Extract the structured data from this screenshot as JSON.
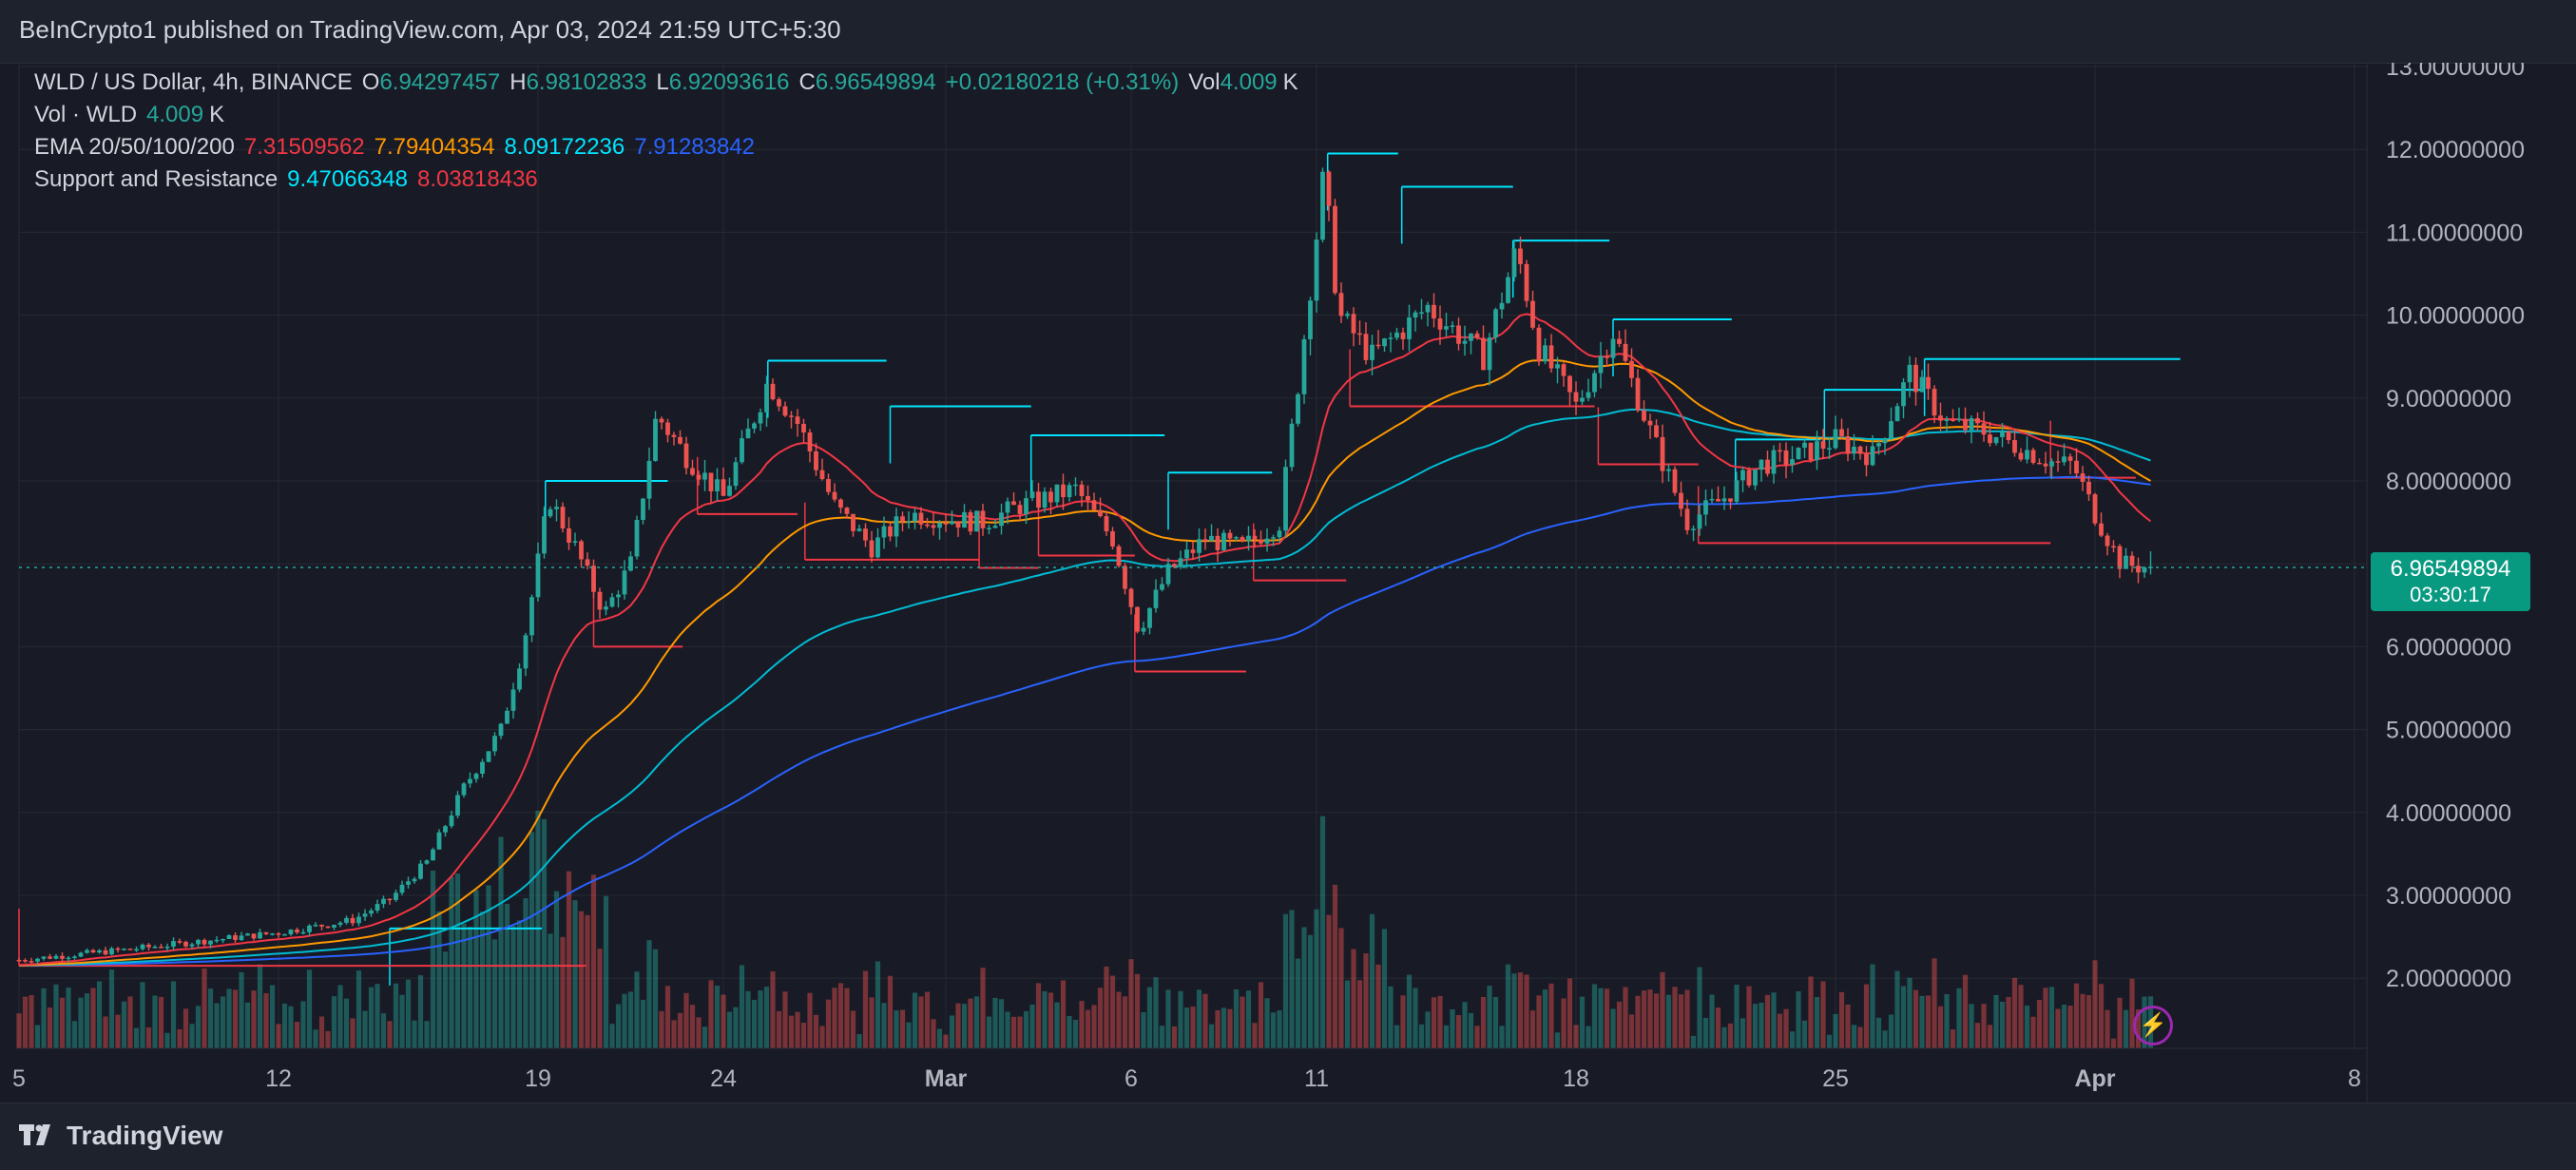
{
  "header": {
    "publisher_line": "BeInCrypto1 published on TradingView.com, Apr 03, 2024 21:59 UTC+5:30"
  },
  "legend": {
    "symbol": "WLD / US Dollar, 4h, BINANCE",
    "o_label": "O",
    "o": "6.94297457",
    "h_label": "H",
    "h": "6.98102833",
    "l_label": "L",
    "l": "6.92093616",
    "c_label": "C",
    "c": "6.96549894",
    "change": "+0.02180218 (+0.31%)",
    "vol_label": "Vol",
    "vol": "4.009",
    "vol_unit": "K",
    "vol_series_label": "Vol · WLD",
    "ema_label": "EMA 20/50/100/200",
    "ema20": "7.31509562",
    "ema50": "7.79404354",
    "ema100": "8.09172236",
    "ema200": "7.91283842",
    "sr_label": "Support and Resistance",
    "resistance": "9.47066348",
    "support": "8.03818436"
  },
  "price_tag": {
    "price": "6.96549894",
    "countdown": "03:30:17"
  },
  "footer": {
    "brand": "TradingView"
  },
  "colors": {
    "up": "#26a69a",
    "down": "#ef5350",
    "ema20": "#f23645",
    "ema50": "#ff9800",
    "ema100": "#00bcd4",
    "ema200": "#2962ff",
    "resistance": "#00e5ff",
    "support": "#f23645",
    "grid": "#262a35"
  },
  "icons": [
    "lightning-icon",
    "tradingview-logo-icon"
  ],
  "chart_data": {
    "type": "candlestick",
    "symbol": "WLD / US Dollar",
    "interval": "4h",
    "exchange": "BINANCE",
    "y_axis_ticks": [
      "13.00000000",
      "12.00000000",
      "11.00000000",
      "10.00000000",
      "9.00000000",
      "8.00000000",
      "7.00000000",
      "6.00000000",
      "5.00000000",
      "4.00000000",
      "3.00000000",
      "2.00000000"
    ],
    "y_axis_values": [
      13,
      12,
      11,
      10,
      9,
      8,
      7,
      6,
      5,
      4,
      3,
      2
    ],
    "ylim": [
      1.28,
      13.0
    ],
    "x_axis_labels": [
      "5",
      "12",
      "19",
      "24",
      "Mar",
      "6",
      "11",
      "18",
      "25",
      "Apr",
      "8"
    ],
    "x_axis_label_days": [
      0,
      7,
      14,
      19,
      25,
      30,
      35,
      42,
      49,
      56,
      63
    ],
    "x_start": "2024-02-05",
    "last_price": 6.96549894,
    "price_anchors": [
      {
        "day": 0,
        "close": 2.22
      },
      {
        "day": 3,
        "close": 2.35
      },
      {
        "day": 5,
        "close": 2.45
      },
      {
        "day": 7,
        "close": 2.55
      },
      {
        "day": 9,
        "close": 2.7
      },
      {
        "day": 10,
        "close": 2.95
      },
      {
        "day": 11,
        "close": 3.4
      },
      {
        "day": 12,
        "close": 4.3
      },
      {
        "day": 13,
        "close": 5.0
      },
      {
        "day": 13.6,
        "close": 6.0
      },
      {
        "day": 14.3,
        "close": 7.8
      },
      {
        "day": 15,
        "close": 7.2
      },
      {
        "day": 15.8,
        "close": 6.4
      },
      {
        "day": 16.5,
        "close": 7.0
      },
      {
        "day": 17.2,
        "close": 8.8
      },
      {
        "day": 18,
        "close": 8.3
      },
      {
        "day": 19,
        "close": 7.8
      },
      {
        "day": 20.2,
        "close": 9.2
      },
      {
        "day": 21,
        "close": 8.7
      },
      {
        "day": 22,
        "close": 7.7
      },
      {
        "day": 23,
        "close": 7.2
      },
      {
        "day": 24,
        "close": 7.6
      },
      {
        "day": 26,
        "close": 7.5
      },
      {
        "day": 27,
        "close": 7.7
      },
      {
        "day": 28.5,
        "close": 7.9
      },
      {
        "day": 29.5,
        "close": 7.3
      },
      {
        "day": 30.2,
        "close": 6.2
      },
      {
        "day": 31,
        "close": 6.9
      },
      {
        "day": 32,
        "close": 7.3
      },
      {
        "day": 33,
        "close": 7.2
      },
      {
        "day": 34,
        "close": 7.5
      },
      {
        "day": 34.6,
        "close": 9.5
      },
      {
        "day": 35.2,
        "close": 11.7
      },
      {
        "day": 35.6,
        "close": 10.0
      },
      {
        "day": 36.5,
        "close": 9.5
      },
      {
        "day": 38,
        "close": 10.1
      },
      {
        "day": 39.5,
        "close": 9.5
      },
      {
        "day": 40.4,
        "close": 10.8
      },
      {
        "day": 41,
        "close": 9.6
      },
      {
        "day": 42,
        "close": 8.9
      },
      {
        "day": 43,
        "close": 9.8
      },
      {
        "day": 44,
        "close": 8.6
      },
      {
        "day": 45,
        "close": 7.5
      },
      {
        "day": 46,
        "close": 7.8
      },
      {
        "day": 47,
        "close": 8.2
      },
      {
        "day": 48,
        "close": 8.3
      },
      {
        "day": 49,
        "close": 8.5
      },
      {
        "day": 50,
        "close": 8.3
      },
      {
        "day": 51,
        "close": 9.3
      },
      {
        "day": 52,
        "close": 8.7
      },
      {
        "day": 53,
        "close": 8.6
      },
      {
        "day": 54,
        "close": 8.4
      },
      {
        "day": 55,
        "close": 8.2
      },
      {
        "day": 55.4,
        "close": 8.2
      },
      {
        "day": 56,
        "close": 7.6
      },
      {
        "day": 56.7,
        "close": 7.0
      },
      {
        "day": 57.5,
        "close": 6.95
      }
    ],
    "ema_values_last": {
      "ema20": 7.31509562,
      "ema50": 7.79404354,
      "ema100": 8.09172236,
      "ema200": 7.91283842
    },
    "resistance_levels": [
      {
        "price": 2.6,
        "from_day": 10,
        "to_day": 14.1
      },
      {
        "price": 8.0,
        "from_day": 14.2,
        "to_day": 17.5
      },
      {
        "price": 9.45,
        "from_day": 20.2,
        "to_day": 23.4
      },
      {
        "price": 8.9,
        "from_day": 23.5,
        "to_day": 27.3
      },
      {
        "price": 8.55,
        "from_day": 27.3,
        "to_day": 30.9
      },
      {
        "price": 8.1,
        "from_day": 31.0,
        "to_day": 33.8
      },
      {
        "price": 11.95,
        "from_day": 35.3,
        "to_day": 37.2
      },
      {
        "price": 11.55,
        "from_day": 37.3,
        "to_day": 40.3
      },
      {
        "price": 10.9,
        "from_day": 40.3,
        "to_day": 42.9
      },
      {
        "price": 9.95,
        "from_day": 43.0,
        "to_day": 46.2
      },
      {
        "price": 8.5,
        "from_day": 46.3,
        "to_day": 48.6
      },
      {
        "price": 9.1,
        "from_day": 48.7,
        "to_day": 51.3
      },
      {
        "price": 9.47066348,
        "from_day": 51.4,
        "to_day": 58.3
      }
    ],
    "support_levels": [
      {
        "price": 2.15,
        "from_day": 0,
        "to_day": 15.3
      },
      {
        "price": 6.0,
        "from_day": 15.5,
        "to_day": 17.9
      },
      {
        "price": 7.6,
        "from_day": 18.3,
        "to_day": 21.0
      },
      {
        "price": 7.05,
        "from_day": 21.2,
        "to_day": 25.9
      },
      {
        "price": 6.95,
        "from_day": 25.9,
        "to_day": 27.5
      },
      {
        "price": 7.1,
        "from_day": 27.5,
        "to_day": 30.1
      },
      {
        "price": 5.7,
        "from_day": 30.1,
        "to_day": 33.1
      },
      {
        "price": 6.8,
        "from_day": 33.3,
        "to_day": 35.8
      },
      {
        "price": 8.9,
        "from_day": 35.9,
        "to_day": 42.5
      },
      {
        "price": 8.2,
        "from_day": 42.6,
        "to_day": 45.3
      },
      {
        "price": 7.25,
        "from_day": 45.3,
        "to_day": 54.8
      },
      {
        "price": 8.03818436,
        "from_day": 54.8,
        "to_day": 57.1
      }
    ],
    "volume_note": "Volume histogram at bottom of pane, colored by candle direction"
  }
}
